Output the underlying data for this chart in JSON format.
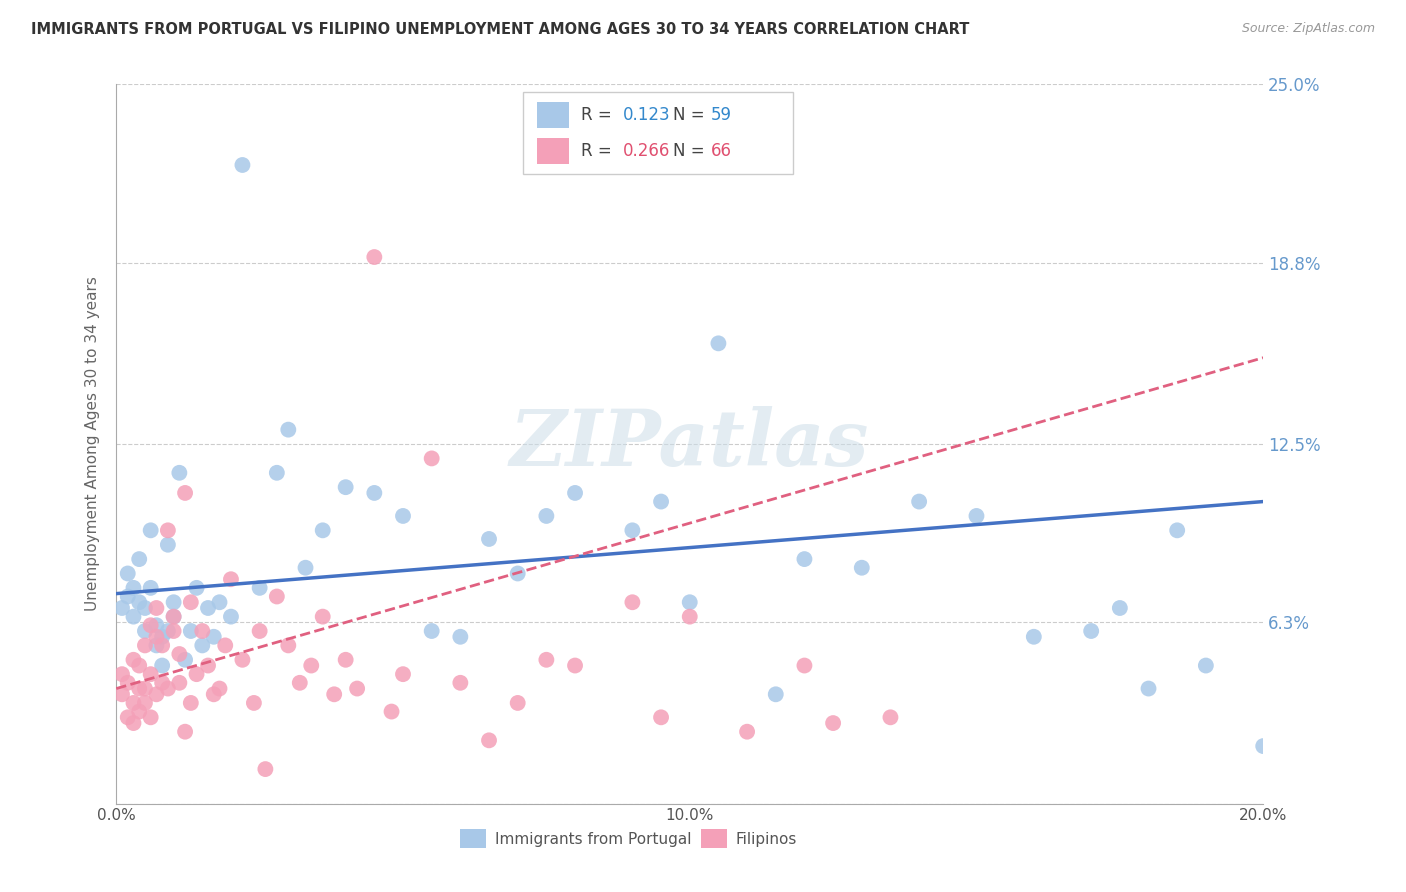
{
  "title": "IMMIGRANTS FROM PORTUGAL VS FILIPINO UNEMPLOYMENT AMONG AGES 30 TO 34 YEARS CORRELATION CHART",
  "source": "Source: ZipAtlas.com",
  "ylabel": "Unemployment Among Ages 30 to 34 years",
  "xlim": [
    0.0,
    0.2
  ],
  "ylim": [
    0.0,
    0.25
  ],
  "yticks": [
    0.0,
    0.063,
    0.125,
    0.188,
    0.25
  ],
  "ytick_labels": [
    "",
    "6.3%",
    "12.5%",
    "18.8%",
    "25.0%"
  ],
  "xticks": [
    0.0,
    0.05,
    0.1,
    0.15,
    0.2
  ],
  "xtick_labels": [
    "0.0%",
    "",
    "10.0%",
    "",
    "20.0%"
  ],
  "series1_label": "Immigrants from Portugal",
  "series1_R": "0.123",
  "series1_N": "59",
  "series1_color": "#a8c8e8",
  "series1_line_color": "#4472c4",
  "series2_label": "Filipinos",
  "series2_R": "0.266",
  "series2_N": "66",
  "series2_color": "#f4a0b8",
  "series2_line_color": "#e06080",
  "background_color": "#ffffff",
  "grid_color": "#cccccc",
  "watermark": "ZIPatlas",
  "series1_x": [
    0.001,
    0.002,
    0.002,
    0.003,
    0.003,
    0.004,
    0.004,
    0.005,
    0.005,
    0.006,
    0.006,
    0.007,
    0.007,
    0.008,
    0.008,
    0.009,
    0.009,
    0.01,
    0.01,
    0.011,
    0.012,
    0.013,
    0.014,
    0.015,
    0.016,
    0.017,
    0.018,
    0.02,
    0.022,
    0.025,
    0.028,
    0.03,
    0.033,
    0.036,
    0.04,
    0.045,
    0.05,
    0.055,
    0.06,
    0.065,
    0.07,
    0.075,
    0.08,
    0.09,
    0.095,
    0.1,
    0.105,
    0.115,
    0.12,
    0.13,
    0.14,
    0.15,
    0.16,
    0.17,
    0.175,
    0.18,
    0.185,
    0.19,
    0.2
  ],
  "series1_y": [
    0.068,
    0.072,
    0.08,
    0.075,
    0.065,
    0.07,
    0.085,
    0.068,
    0.06,
    0.095,
    0.075,
    0.062,
    0.055,
    0.048,
    0.058,
    0.06,
    0.09,
    0.07,
    0.065,
    0.115,
    0.05,
    0.06,
    0.075,
    0.055,
    0.068,
    0.058,
    0.07,
    0.065,
    0.222,
    0.075,
    0.115,
    0.13,
    0.082,
    0.095,
    0.11,
    0.108,
    0.1,
    0.06,
    0.058,
    0.092,
    0.08,
    0.1,
    0.108,
    0.095,
    0.105,
    0.07,
    0.16,
    0.038,
    0.085,
    0.082,
    0.105,
    0.1,
    0.058,
    0.06,
    0.068,
    0.04,
    0.095,
    0.048,
    0.02
  ],
  "series2_x": [
    0.001,
    0.001,
    0.002,
    0.002,
    0.003,
    0.003,
    0.003,
    0.004,
    0.004,
    0.004,
    0.005,
    0.005,
    0.005,
    0.006,
    0.006,
    0.006,
    0.007,
    0.007,
    0.007,
    0.008,
    0.008,
    0.009,
    0.009,
    0.01,
    0.01,
    0.011,
    0.011,
    0.012,
    0.012,
    0.013,
    0.013,
    0.014,
    0.015,
    0.016,
    0.017,
    0.018,
    0.019,
    0.02,
    0.022,
    0.024,
    0.025,
    0.026,
    0.028,
    0.03,
    0.032,
    0.034,
    0.036,
    0.038,
    0.04,
    0.042,
    0.045,
    0.048,
    0.05,
    0.055,
    0.06,
    0.065,
    0.07,
    0.075,
    0.08,
    0.09,
    0.095,
    0.1,
    0.11,
    0.12,
    0.125,
    0.135
  ],
  "series2_y": [
    0.045,
    0.038,
    0.042,
    0.03,
    0.035,
    0.028,
    0.05,
    0.04,
    0.032,
    0.048,
    0.035,
    0.04,
    0.055,
    0.03,
    0.045,
    0.062,
    0.038,
    0.058,
    0.068,
    0.042,
    0.055,
    0.04,
    0.095,
    0.06,
    0.065,
    0.052,
    0.042,
    0.025,
    0.108,
    0.07,
    0.035,
    0.045,
    0.06,
    0.048,
    0.038,
    0.04,
    0.055,
    0.078,
    0.05,
    0.035,
    0.06,
    0.012,
    0.072,
    0.055,
    0.042,
    0.048,
    0.065,
    0.038,
    0.05,
    0.04,
    0.19,
    0.032,
    0.045,
    0.12,
    0.042,
    0.022,
    0.035,
    0.05,
    0.048,
    0.07,
    0.03,
    0.065,
    0.025,
    0.048,
    0.028,
    0.03
  ]
}
